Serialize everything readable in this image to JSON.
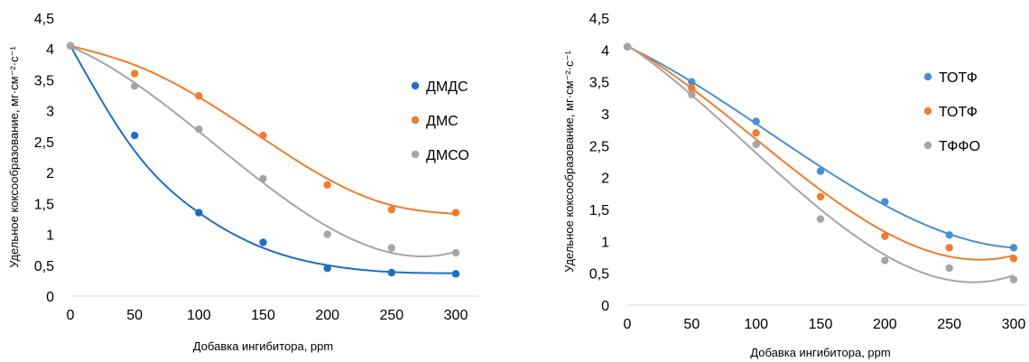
{
  "chart_data": [
    {
      "type": "scatter",
      "xlabel": "Добавка ингибитора, ppm",
      "ylabel": "Удельное коксообразование, мг·см⁻²·с⁻¹",
      "xticks": [
        "0",
        "50",
        "100",
        "150",
        "200",
        "250",
        "300"
      ],
      "yticks": [
        "0",
        "0,5",
        "1",
        "1,5",
        "2",
        "2,5",
        "3",
        "3,5",
        "4",
        "4,5"
      ],
      "xlim": [
        0,
        300
      ],
      "ylim": [
        0,
        4.5
      ],
      "grid": false,
      "trendlines": true,
      "legend_position": "right",
      "x": [
        0,
        50,
        100,
        150,
        200,
        250,
        300
      ],
      "series": [
        {
          "name": "ДМДС",
          "color": "#1f6fbf",
          "values": [
            4.05,
            2.6,
            1.35,
            0.87,
            0.45,
            0.38,
            0.36
          ],
          "trend": [
            4.05,
            2.35,
            1.35,
            0.78,
            0.5,
            0.39,
            0.37
          ]
        },
        {
          "name": "ДМС",
          "color": "#ed7d31",
          "values": [
            4.05,
            3.6,
            3.24,
            2.6,
            1.8,
            1.4,
            1.35
          ],
          "trend": [
            4.05,
            3.74,
            3.22,
            2.55,
            1.9,
            1.47,
            1.33
          ]
        },
        {
          "name": "ДМСО",
          "color": "#a5a5a5",
          "values": [
            4.05,
            3.4,
            2.7,
            1.9,
            1.0,
            0.78,
            0.7
          ]
        }
      ]
    },
    {
      "type": "scatter",
      "xlabel": "Добавка ингибитора, ppm",
      "ylabel": "Удельное коксообразование, мг·см⁻²·с⁻¹",
      "xticks": [
        "0",
        "50",
        "100",
        "150",
        "200",
        "250",
        "300"
      ],
      "yticks": [
        "0",
        "0,5",
        "1",
        "1,5",
        "2",
        "2,5",
        "3",
        "3,5",
        "4",
        "4,5"
      ],
      "xlim": [
        0,
        300
      ],
      "ylim": [
        0,
        4.5
      ],
      "grid": false,
      "trendlines": true,
      "legend_position": "right",
      "x": [
        0,
        50,
        100,
        150,
        200,
        250,
        300
      ],
      "series": [
        {
          "name": "ТОТФ",
          "color": "#4a8fd0",
          "values": [
            4.05,
            3.5,
            2.88,
            2.1,
            1.62,
            1.1,
            0.9
          ]
        },
        {
          "name": "ТОТФ",
          "color": "#ed7d31",
          "values": [
            4.05,
            3.4,
            2.7,
            1.7,
            1.08,
            0.9,
            0.73
          ]
        },
        {
          "name": "ТФФО",
          "color": "#a5a5a5",
          "values": [
            4.05,
            3.3,
            2.52,
            1.35,
            0.7,
            0.58,
            0.4
          ]
        }
      ]
    }
  ]
}
